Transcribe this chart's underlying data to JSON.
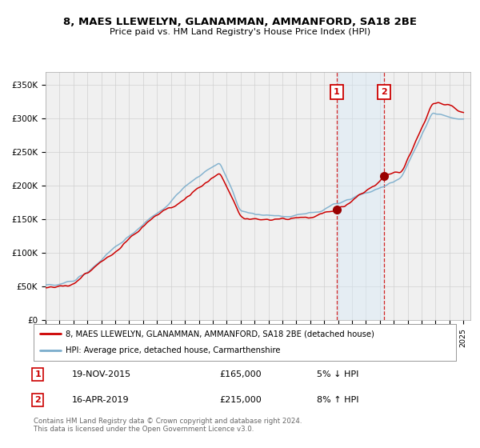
{
  "title1": "8, MAES LLEWELYN, GLANAMMAN, AMMANFORD, SA18 2BE",
  "title2": "Price paid vs. HM Land Registry's House Price Index (HPI)",
  "ylim": [
    0,
    370000
  ],
  "yticks": [
    0,
    50000,
    100000,
    150000,
    200000,
    250000,
    300000,
    350000
  ],
  "ytick_labels": [
    "£0",
    "£50K",
    "£100K",
    "£150K",
    "£200K",
    "£250K",
    "£300K",
    "£350K"
  ],
  "sale1_date": 2015.9,
  "sale1_price": 165000,
  "sale2_date": 2019.3,
  "sale2_price": 215000,
  "sale1_label": "19-NOV-2015",
  "sale1_price_str": "£165,000",
  "sale1_pct": "5% ↓ HPI",
  "sale2_label": "16-APR-2019",
  "sale2_price_str": "£215,000",
  "sale2_pct": "8% ↑ HPI",
  "line1_label": "8, MAES LLEWELYN, GLANAMMAN, AMMANFORD, SA18 2BE (detached house)",
  "line2_label": "HPI: Average price, detached house, Carmarthenshire",
  "line1_color": "#cc0000",
  "line2_color": "#7aadcc",
  "highlight_color": "#d8eaf7",
  "footer": "Contains HM Land Registry data © Crown copyright and database right 2024.\nThis data is licensed under the Open Government Licence v3.0.",
  "background_color": "#f0f0f0",
  "grid_color": "#d0d0d0"
}
